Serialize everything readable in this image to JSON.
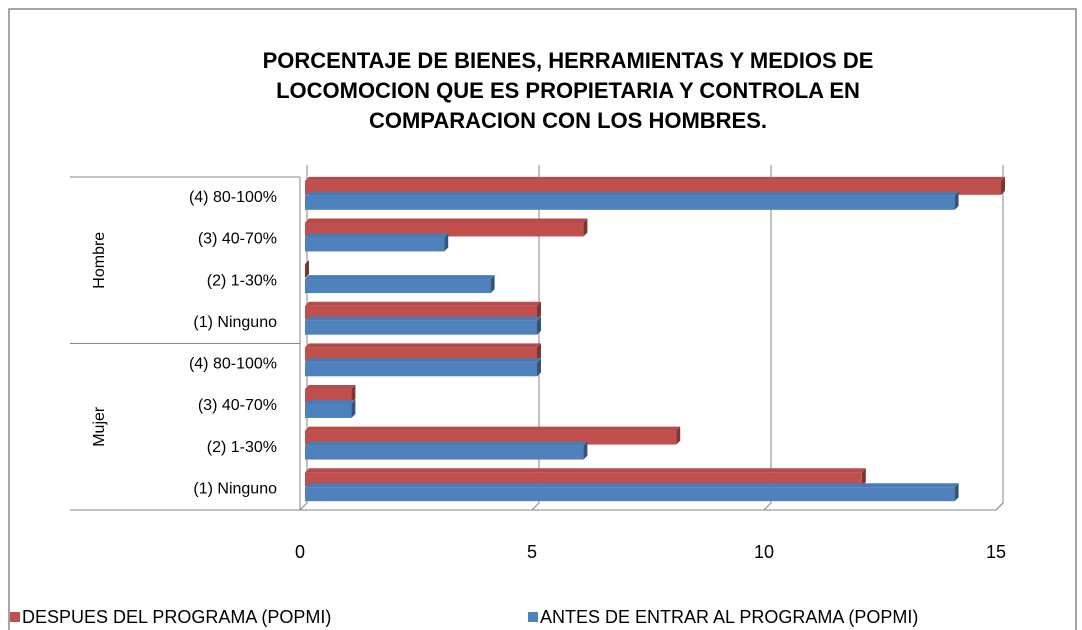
{
  "chart_data": {
    "type": "bar",
    "orientation": "horizontal",
    "title": [
      "PORCENTAJE DE BIENES, HERRAMIENTAS  Y MEDIOS DE",
      "LOCOMOCION QUE ES PROPIETARIA Y CONTROLA EN",
      "COMPARACION CON LOS HOMBRES."
    ],
    "groups": [
      {
        "name": "Mujer",
        "size": 4
      },
      {
        "name": "Hombre",
        "size": 4
      }
    ],
    "categories": [
      "(1)  Ninguno",
      "(2)  1-30%",
      "(3)  40-70%",
      "(4)  80-100%",
      "(1)  Ninguno",
      "(2)  1-30%",
      "(3)  40-70%",
      "(4)  80-100%"
    ],
    "series": [
      {
        "name": "DESPUES DEL PROGRAMA (POPMI)",
        "color": "#c0504d",
        "values": [
          12,
          8,
          1,
          5,
          5,
          0,
          6,
          15
        ]
      },
      {
        "name": "ANTES DE ENTRAR AL PROGRAMA (POPMI)",
        "color": "#4f81bd",
        "values": [
          14,
          6,
          1,
          5,
          5,
          4,
          3,
          14
        ]
      }
    ],
    "xlim": [
      0,
      15
    ],
    "xticks": [
      0,
      5,
      10,
      15
    ],
    "grid": true,
    "legend": "bottom"
  }
}
